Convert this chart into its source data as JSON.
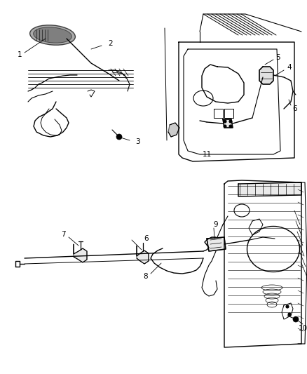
{
  "bg": "#ffffff",
  "lc": "#000000",
  "fig_w": 4.38,
  "fig_h": 5.33,
  "dpi": 100
}
